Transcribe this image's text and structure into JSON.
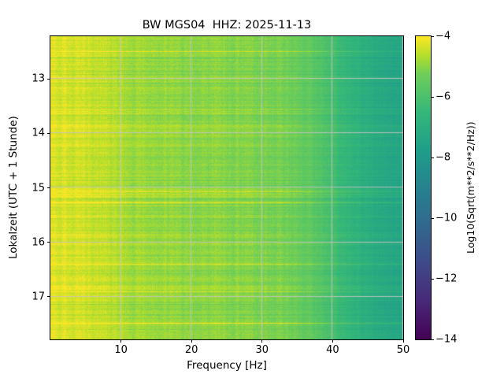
{
  "figure": {
    "background": "#ffffff"
  },
  "chart_data": {
    "type": "heatmap",
    "subtype": "spectrogram",
    "title": "BW MGS04  HHZ: 2025-11-13",
    "xlabel": "Frequency [Hz]",
    "ylabel": "Lokalzeit (UTC + 1 Stunde)",
    "x_range": [
      0,
      50
    ],
    "y_range": [
      12.22,
      17.78
    ],
    "x_ticks": [
      {
        "value": 10,
        "label": "10"
      },
      {
        "value": 20,
        "label": "20"
      },
      {
        "value": 30,
        "label": "30"
      },
      {
        "value": 40,
        "label": "40"
      },
      {
        "value": 50,
        "label": "50"
      }
    ],
    "y_ticks": [
      {
        "value": 13,
        "label": "13"
      },
      {
        "value": 14,
        "label": "14"
      },
      {
        "value": 15,
        "label": "15"
      },
      {
        "value": 16,
        "label": "16"
      },
      {
        "value": 17,
        "label": "17"
      }
    ],
    "grid": true,
    "grid_color": "rgba(195,195,195,0.9)",
    "colorbar": {
      "label": "Log10(Sqrt(m**2/s**2/Hz))",
      "range": [
        -14,
        -4
      ],
      "ticks": [
        {
          "value": -4,
          "label": "−4"
        },
        {
          "value": -6,
          "label": "−6"
        },
        {
          "value": -8,
          "label": "−8"
        },
        {
          "value": -10,
          "label": "−10"
        },
        {
          "value": -12,
          "label": "−12"
        },
        {
          "value": -14,
          "label": "−14"
        }
      ],
      "colormap": "viridis",
      "colormap_stops": [
        {
          "t": 0.0,
          "color": "#440154"
        },
        {
          "t": 0.125,
          "color": "#482878"
        },
        {
          "t": 0.25,
          "color": "#3e4989"
        },
        {
          "t": 0.375,
          "color": "#31688e"
        },
        {
          "t": 0.5,
          "color": "#26828e"
        },
        {
          "t": 0.625,
          "color": "#1f9e89"
        },
        {
          "t": 0.75,
          "color": "#35b779"
        },
        {
          "t": 0.875,
          "color": "#6ece58"
        },
        {
          "t": 0.9375,
          "color": "#b5de2b"
        },
        {
          "t": 1.0,
          "color": "#fde725"
        }
      ]
    },
    "heatmap": {
      "seed": 1337,
      "frequency_profile": {
        "freqs": [
          0,
          1,
          3,
          6,
          9,
          12,
          16,
          20,
          25,
          30,
          34,
          37,
          40,
          43,
          46,
          50
        ],
        "values_log10": [
          -4.2,
          -4.3,
          -4.4,
          -4.4,
          -4.6,
          -4.8,
          -4.9,
          -5.0,
          -5.0,
          -5.1,
          -5.3,
          -5.6,
          -6.1,
          -6.7,
          -7.1,
          -7.4
        ]
      },
      "row_noise": 0.32,
      "pixel_noise": 0.38,
      "stripe_probability": 0.045
    }
  }
}
